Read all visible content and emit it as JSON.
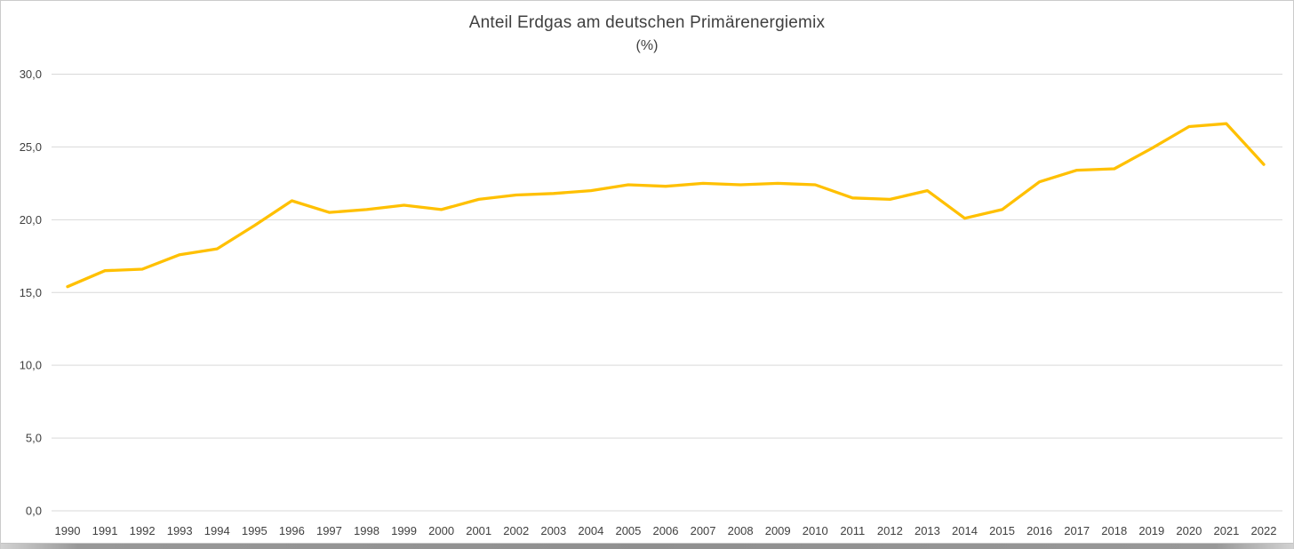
{
  "chart_data": {
    "type": "line",
    "title": "Anteil Erdgas am deutschen Primärenergiemix",
    "subtitle": "(%)",
    "xlabel": "",
    "ylabel": "",
    "x": [
      1990,
      1991,
      1992,
      1993,
      1994,
      1995,
      1996,
      1997,
      1998,
      1999,
      2000,
      2001,
      2002,
      2003,
      2004,
      2005,
      2006,
      2007,
      2008,
      2009,
      2010,
      2011,
      2012,
      2013,
      2014,
      2015,
      2016,
      2017,
      2018,
      2019,
      2020,
      2021,
      2022
    ],
    "series": [
      {
        "name": "Anteil Erdgas",
        "color": "#FFC000",
        "values": [
          15.4,
          16.5,
          16.6,
          17.6,
          18.0,
          19.6,
          21.3,
          20.5,
          20.7,
          21.0,
          20.7,
          21.4,
          21.7,
          21.8,
          22.0,
          22.4,
          22.3,
          22.5,
          22.4,
          22.5,
          22.4,
          21.5,
          21.4,
          22.0,
          20.1,
          20.7,
          22.6,
          23.4,
          23.5,
          24.9,
          26.4,
          26.6,
          23.8
        ]
      }
    ],
    "ylim": [
      0,
      30
    ],
    "ytick_interval": 5,
    "ytick_labels": [
      "0,0",
      "5,0",
      "10,0",
      "15,0",
      "20,0",
      "25,0",
      "30,0"
    ],
    "grid": "horizontal-only",
    "gridline_color": "#d9d9d9",
    "legend_position": "none",
    "text_color": "#404040"
  }
}
